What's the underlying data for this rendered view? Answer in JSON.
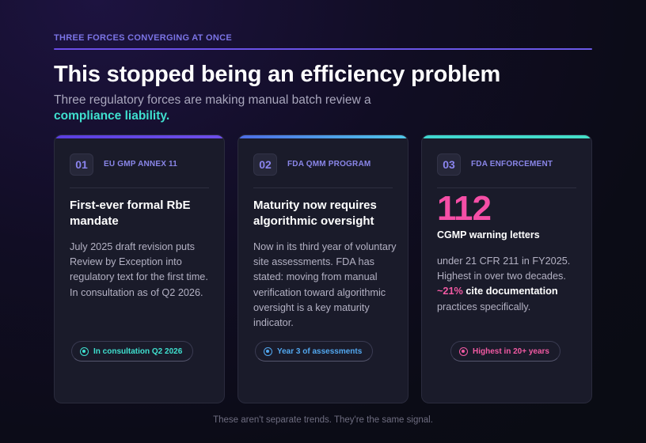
{
  "header": {
    "eyebrow": "THREE FORCES CONVERGING AT ONCE",
    "title": "This stopped being an efficiency problem",
    "subtitle_plain": "Three regulatory forces are making manual batch review a",
    "subtitle_accent": "compliance liability."
  },
  "cards": [
    {
      "number": "01",
      "tag": "EU GMP ANNEX 11",
      "heading": "First-ever formal RbE mandate",
      "body": "July 2025 draft revision puts Review by Exception into regulatory text for the first time. In consultation as of Q2 2026.",
      "pill": "In consultation Q2 2026",
      "accent_color": "#3fe0cf"
    },
    {
      "number": "02",
      "tag": "FDA QMM PROGRAM",
      "heading": "Maturity now requires algorithmic oversight",
      "body": "Now in its third year of voluntary site assessments. FDA has stated: moving from manual verification toward algorithmic oversight is a key maturity indicator.",
      "pill": "Year 3 of assessments",
      "accent_color": "#52a8f0"
    },
    {
      "number": "03",
      "tag": "FDA ENFORCEMENT",
      "stat": "112",
      "stat_label": "CGMP warning letters",
      "body_plain": "under 21 CFR 211 in FY2025. Highest in over two decades.",
      "body_highlight": "~21%",
      "body_bold": "cite documentation",
      "body_tail": "practices specifically.",
      "pill": "Highest in 20+ years",
      "accent_color": "#f25aa3"
    }
  ],
  "footer": "These aren't separate trends. They're the same signal."
}
